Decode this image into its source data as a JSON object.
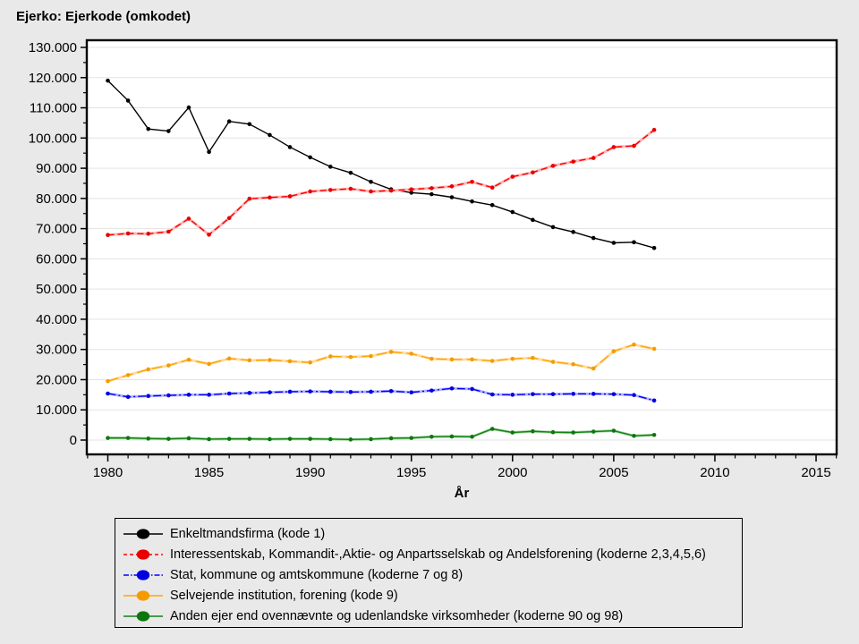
{
  "chart_data": {
    "type": "line",
    "title": "Ejerko: Ejerkode (omkodet)",
    "xlabel": "År",
    "ylabel": "",
    "xlim": [
      1979,
      2016
    ],
    "ylim": [
      0,
      130000
    ],
    "grid": "horizontal-major",
    "legend_position": "bottom",
    "background_color": "#e9e9e9",
    "plot_background": "#ffffff",
    "x": [
      1980,
      1981,
      1982,
      1983,
      1984,
      1985,
      1986,
      1987,
      1988,
      1989,
      1990,
      1991,
      1992,
      1993,
      1994,
      1995,
      1996,
      1997,
      1998,
      1999,
      2000,
      2001,
      2002,
      2003,
      2004,
      2005,
      2006,
      2007
    ],
    "series": [
      {
        "name": "enkeltmandsfirma",
        "label": "Enkeltmandsfirma (kode 1)",
        "color": "#000000",
        "marker": "#000000",
        "halo": "",
        "dash": "",
        "legend_dash": "",
        "values": [
          119000,
          112400,
          103000,
          102300,
          110100,
          95400,
          105500,
          104600,
          101000,
          97000,
          93600,
          90500,
          88500,
          85500,
          83000,
          81900,
          81400,
          80400,
          79000,
          77800,
          75500,
          72900,
          70500,
          68900,
          66900,
          65300,
          65500,
          63600
        ]
      },
      {
        "name": "interessentskab",
        "label": "Interessentskab, Kommandit-,Aktie- og Anpartsselskab og Andelsforening (koderne 2,3,4,5,6)",
        "color": "#ff0000",
        "marker": "#e80000",
        "halo": "#ffb3b3",
        "dash": "7,4",
        "legend_dash": "4,3",
        "values": [
          67900,
          68400,
          68300,
          69000,
          73300,
          68000,
          73500,
          79900,
          80300,
          80700,
          82300,
          82800,
          83200,
          82300,
          82600,
          83000,
          83400,
          84000,
          85500,
          83600,
          87200,
          88600,
          90800,
          92200,
          93400,
          97000,
          97400,
          102700
        ]
      },
      {
        "name": "stat-kommune",
        "label": "Stat, kommune og amtskommune (koderne 7 og 8)",
        "color": "#0000ff",
        "marker": "#0000e0",
        "halo": "#b3b3ff",
        "dash": "9,3,2,3",
        "legend_dash": "6,2,1.5,2",
        "values": [
          15400,
          14300,
          14600,
          14800,
          15000,
          15000,
          15400,
          15600,
          15800,
          16000,
          16100,
          16000,
          15900,
          16000,
          16200,
          15800,
          16400,
          17100,
          16900,
          15100,
          15000,
          15200,
          15200,
          15300,
          15300,
          15200,
          14900,
          13100
        ]
      },
      {
        "name": "selvejende-institution",
        "label": "Selvejende institution, forening (kode 9)",
        "color": "#ffa500",
        "marker": "#f59b00",
        "halo": "#ffdca3",
        "dash": "12,5",
        "legend_dash": "",
        "values": [
          19500,
          21500,
          23400,
          24700,
          26600,
          25200,
          27000,
          26400,
          26500,
          26100,
          25700,
          27700,
          27500,
          27800,
          29200,
          28600,
          26900,
          26700,
          26700,
          26200,
          26900,
          27200,
          25900,
          25100,
          23700,
          29400,
          31600,
          30200
        ]
      },
      {
        "name": "anden-ejer",
        "label": "Anden ejer end ovennævnte og udenlandske virksomheder (koderne 90 og 98)",
        "color": "#128212",
        "marker": "#0e760e",
        "halo": "#a3d3a3",
        "dash": "",
        "legend_dash": "",
        "values": [
          700,
          700,
          500,
          400,
          600,
          300,
          400,
          400,
          300,
          400,
          400,
          300,
          200,
          300,
          600,
          700,
          1100,
          1200,
          1100,
          3700,
          2500,
          2900,
          2600,
          2500,
          2800,
          3100,
          1400,
          1700
        ]
      }
    ],
    "x_axis": {
      "label": "År",
      "tick_values": [
        1980,
        1985,
        1990,
        1995,
        2000,
        2005,
        2010,
        2015
      ],
      "tick_labels": [
        "1980",
        "1985",
        "1990",
        "1995",
        "2000",
        "2005",
        "2010",
        "2015"
      ],
      "minor_step": 1,
      "minor_range": [
        1979,
        2016
      ]
    },
    "y_axis": {
      "tick_values": [
        0,
        10000,
        20000,
        30000,
        40000,
        50000,
        60000,
        70000,
        80000,
        90000,
        100000,
        110000,
        120000,
        130000
      ],
      "tick_labels": [
        "0",
        "10.000",
        "20.000",
        "30.000",
        "40.000",
        "50.000",
        "60.000",
        "70.000",
        "80.000",
        "90.000",
        "100.000",
        "110.000",
        "120.000",
        "130.000"
      ],
      "minor_step": 5000
    }
  }
}
